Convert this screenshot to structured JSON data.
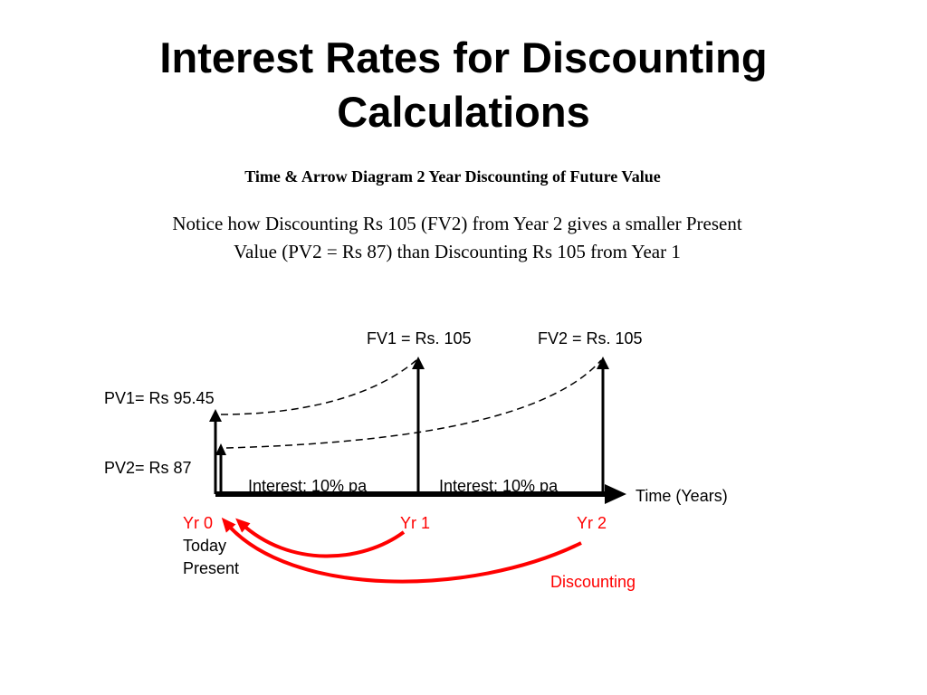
{
  "title": {
    "line1": "Interest Rates for Discounting",
    "line2": "Calculations"
  },
  "diagram": {
    "heading": "Time & Arrow Diagram 2 Year Discounting of Future Value",
    "notice": {
      "line1": "Notice how Discounting Rs 105 (FV2) from Year 2 gives a smaller Present",
      "line2": "Value (PV2 = Rs 87) than Discounting Rs 105 from Year 1"
    },
    "labels": {
      "fv1": "FV1 = Rs. 105",
      "fv2": "FV2 = Rs. 105",
      "pv1": "PV1= Rs 95.45",
      "pv2": "PV2= Rs 87",
      "interest1": "Interest: 10% pa",
      "interest2": "Interest: 10% pa",
      "axis": "Time (Years)",
      "yr0": "Yr 0",
      "yr1": "Yr 1",
      "yr2": "Yr 2",
      "today": "Today",
      "present": "Present",
      "discounting": "Discounting"
    },
    "colors": {
      "axis": "#000000",
      "discount_arrows": "#ff0000"
    }
  }
}
